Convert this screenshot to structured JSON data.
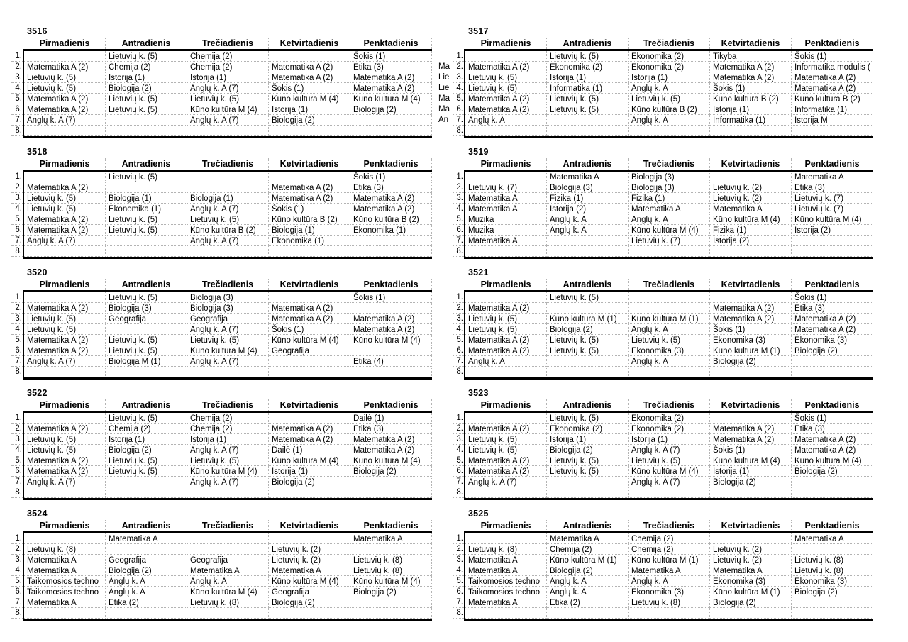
{
  "page": {
    "background_color": "#ffffff",
    "text_color": "#000000",
    "rule_color": "#000000",
    "dotted_grid_color": "#b3b3b3"
  },
  "days": [
    "Pirmadienis",
    "Antradienis",
    "Trečiadienis",
    "Ketvirtadienis",
    "Penktadienis"
  ],
  "row_numbers": [
    "1.",
    "2.",
    "3.",
    "4.",
    "5.",
    "6.",
    "7.",
    "8."
  ],
  "tables": [
    {
      "id": "3516",
      "rows": [
        [
          "",
          "Lietuvių k. (5)",
          "Chemija (2)",
          "",
          "Šokis (1)"
        ],
        [
          "Matematika A (2)",
          "Chemija (2)",
          "Chemija (2)",
          "Matematika A (2)",
          "Etika (3)"
        ],
        [
          "Lietuvių k. (5)",
          "Istorija (1)",
          "Istorija (1)",
          "Matematika A (2)",
          "Matematika A (2)"
        ],
        [
          "Lietuvių k. (5)",
          "Biologija (2)",
          "Anglų k. A (7)",
          "Šokis (1)",
          "Matematika A (2)"
        ],
        [
          "Matematika A (2)",
          "Lietuvių k. (5)",
          "Lietuvių k. (5)",
          "Kūno kultūra M (4)",
          "Kūno kultūra M (4)"
        ],
        [
          "Matematika A (2)",
          "Lietuvių k. (5)",
          "Kūno kultūra M (4)",
          "Istorija (1)",
          "Biologija (2)"
        ],
        [
          "Anglų k. A (7)",
          "",
          "Anglų k. A (7)",
          "Biologija (2)",
          ""
        ],
        [
          "",
          "",
          "",
          "",
          ""
        ]
      ]
    },
    {
      "id": "3517",
      "spill_left": [
        "",
        "Ma",
        "Lie",
        "Lie",
        "Ma",
        "Ma",
        "An",
        ""
      ],
      "rows": [
        [
          "",
          "Lietuvių k. (5)",
          "Ekonomika (2)",
          "Tikyba",
          "Šokis (1)"
        ],
        [
          "Matematika A (2)",
          "Ekonomika (2)",
          "Ekonomika (2)",
          "Matematika A (2)",
          "Informatika modulis ("
        ],
        [
          "Lietuvių k. (5)",
          "Istorija (1)",
          "Istorija (1)",
          "Matematika A (2)",
          "Matematika A (2)"
        ],
        [
          "Lietuvių k. (5)",
          "Informatika (1)",
          "Anglų k. A",
          "Šokis (1)",
          "Matematika A (2)"
        ],
        [
          "Matematika A (2)",
          "Lietuvių k. (5)",
          "Lietuvių k. (5)",
          "Kūno kultūra B (2)",
          "Kūno kultūra B (2)"
        ],
        [
          "Matematika A (2)",
          "Lietuvių k. (5)",
          "Kūno kultūra B (2)",
          "Istorija (1)",
          "Informatika (1)"
        ],
        [
          "Anglų k. A",
          "",
          "Anglų k. A",
          "Informatika (1)",
          "Istorija M"
        ],
        [
          "",
          "",
          "",
          "",
          ""
        ]
      ]
    },
    {
      "id": "3518",
      "rows": [
        [
          "",
          "Lietuvių k. (5)",
          "",
          "",
          "Šokis (1)"
        ],
        [
          "Matematika A (2)",
          "",
          "",
          "Matematika A (2)",
          "Etika (3)"
        ],
        [
          "Lietuvių k. (5)",
          "Biologija (1)",
          "Biologija (1)",
          "Matematika A (2)",
          "Matematika A (2)"
        ],
        [
          "Lietuvių k. (5)",
          "Ekonomika (1)",
          "Anglų k. A (7)",
          "Šokis (1)",
          "Matematika A (2)"
        ],
        [
          "Matematika A (2)",
          "Lietuvių k. (5)",
          "Lietuvių k. (5)",
          "Kūno kultūra B (2)",
          "Kūno kultūra B (2)"
        ],
        [
          "Matematika A (2)",
          "Lietuvių k. (5)",
          "Kūno kultūra B (2)",
          "Biologija (1)",
          "Ekonomika (1)"
        ],
        [
          "Anglų k. A (7)",
          "",
          "Anglų k. A (7)",
          "Ekonomika (1)",
          ""
        ],
        [
          "",
          "",
          "",
          "",
          ""
        ]
      ]
    },
    {
      "id": "3519",
      "rows": [
        [
          "",
          "Matematika A",
          "Biologija (3)",
          "",
          "Matematika A"
        ],
        [
          "Lietuvių k. (7)",
          "Biologija (3)",
          "Biologija (3)",
          "Lietuvių k. (2)",
          "Etika (3)"
        ],
        [
          "Matematika A",
          "Fizika (1)",
          "Fizika (1)",
          "Lietuvių k. (2)",
          "Lietuvių k. (7)"
        ],
        [
          "Matematika A",
          "Istorija (2)",
          "Matematika A",
          "Matematika A",
          "Lietuvių k. (7)"
        ],
        [
          "Muzika",
          "Anglų k. A",
          "Anglų k. A",
          "Kūno kultūra M (4)",
          "Kūno kultūra M (4)"
        ],
        [
          "Muzika",
          "Anglų k. A",
          "Kūno kultūra M (4)",
          "Fizika (1)",
          "Istorija (2)"
        ],
        [
          "Matematika A",
          "",
          "Lietuvių k. (7)",
          "Istorija (2)",
          ""
        ],
        [
          "",
          "",
          "",
          "",
          ""
        ]
      ]
    },
    {
      "id": "3520",
      "rows": [
        [
          "",
          "Lietuvių k. (5)",
          "Biologija (3)",
          "",
          "Šokis (1)"
        ],
        [
          "Matematika A (2)",
          "Biologija (3)",
          "Biologija (3)",
          "Matematika A (2)",
          ""
        ],
        [
          "Lietuvių k. (5)",
          "Geografija",
          "Geografija",
          "Matematika A (2)",
          "Matematika A (2)"
        ],
        [
          "Lietuvių k. (5)",
          "",
          "Anglų k. A (7)",
          "Šokis (1)",
          "Matematika A (2)"
        ],
        [
          "Matematika A (2)",
          "Lietuvių k. (5)",
          "Lietuvių k. (5)",
          "Kūno kultūra M (4)",
          "Kūno kultūra M (4)"
        ],
        [
          "Matematika A (2)",
          "Lietuvių k. (5)",
          "Kūno kultūra M (4)",
          "Geografija",
          ""
        ],
        [
          "Anglų k. A (7)",
          "Biologija M (1)",
          "Anglų k. A (7)",
          "",
          "Etika (4)"
        ],
        [
          "",
          "",
          "",
          "",
          ""
        ]
      ]
    },
    {
      "id": "3521",
      "rows": [
        [
          "",
          "Lietuvių k. (5)",
          "",
          "",
          "Šokis (1)"
        ],
        [
          "Matematika A (2)",
          "",
          "",
          "Matematika A (2)",
          "Etika (3)"
        ],
        [
          "Lietuvių k. (5)",
          "Kūno kultūra M (1)",
          "Kūno kultūra M (1)",
          "Matematika A (2)",
          "Matematika A (2)"
        ],
        [
          "Lietuvių k. (5)",
          "Biologija (2)",
          "Anglų k. A",
          "Šokis (1)",
          "Matematika A (2)"
        ],
        [
          "Matematika A (2)",
          "Lietuvių k. (5)",
          "Lietuvių k. (5)",
          "Ekonomika (3)",
          "Ekonomika (3)"
        ],
        [
          "Matematika A (2)",
          "Lietuvių k. (5)",
          "Ekonomika (3)",
          "Kūno kultūra M (1)",
          "Biologija (2)"
        ],
        [
          "Anglų k. A",
          "",
          "Anglų k. A",
          "Biologija (2)",
          ""
        ],
        [
          "",
          "",
          "",
          "",
          ""
        ]
      ]
    },
    {
      "id": "3522",
      "rows": [
        [
          "",
          "Lietuvių k. (5)",
          "Chemija (2)",
          "",
          "Dailė (1)"
        ],
        [
          "Matematika A (2)",
          "Chemija (2)",
          "Chemija (2)",
          "Matematika A (2)",
          "Etika (3)"
        ],
        [
          "Lietuvių k. (5)",
          "Istorija (1)",
          "Istorija (1)",
          "Matematika A (2)",
          "Matematika A (2)"
        ],
        [
          "Lietuvių k. (5)",
          "Biologija (2)",
          "Anglų k. A (7)",
          "Dailė (1)",
          "Matematika A (2)"
        ],
        [
          "Matematika A (2)",
          "Lietuvių k. (5)",
          "Lietuvių k. (5)",
          "Kūno kultūra M (4)",
          "Kūno kultūra M (4)"
        ],
        [
          "Matematika A (2)",
          "Lietuvių k. (5)",
          "Kūno kultūra M (4)",
          "Istorija (1)",
          "Biologija (2)"
        ],
        [
          "Anglų k. A (7)",
          "",
          "Anglų k. A (7)",
          "Biologija (2)",
          ""
        ],
        [
          "",
          "",
          "",
          "",
          ""
        ]
      ]
    },
    {
      "id": "3523",
      "rows": [
        [
          "",
          "Lietuvių k. (5)",
          "Ekonomika (2)",
          "",
          "Šokis (1)"
        ],
        [
          "Matematika A (2)",
          "Ekonomika (2)",
          "Ekonomika (2)",
          "Matematika A (2)",
          "Etika (3)"
        ],
        [
          "Lietuvių k. (5)",
          "Istorija (1)",
          "Istorija (1)",
          "Matematika A (2)",
          "Matematika A (2)"
        ],
        [
          "Lietuvių k. (5)",
          "Biologija (2)",
          "Anglų k. A (7)",
          "Šokis (1)",
          "Matematika A (2)"
        ],
        [
          "Matematika A (2)",
          "Lietuvių k. (5)",
          "Lietuvių k. (5)",
          "Kūno kultūra M (4)",
          "Kūno kultūra M (4)"
        ],
        [
          "Matematika A (2)",
          "Lietuvių k. (5)",
          "Kūno kultūra M (4)",
          "Istorija (1)",
          "Biologija (2)"
        ],
        [
          "Anglų k. A (7)",
          "",
          "Anglų k. A (7)",
          "Biologija (2)",
          ""
        ],
        [
          "",
          "",
          "",
          "",
          ""
        ]
      ]
    },
    {
      "id": "3524",
      "rows": [
        [
          "",
          "Matematika A",
          "",
          "",
          "Matematika A"
        ],
        [
          "Lietuvių k. (8)",
          "",
          "",
          "Lietuvių k. (2)",
          ""
        ],
        [
          "Matematika A",
          "Geografija",
          "Geografija",
          "Lietuvių k. (2)",
          "Lietuvių k. (8)"
        ],
        [
          "Matematika A",
          "Biologija (2)",
          "Matematika A",
          "Matematika A",
          "Lietuvių k. (8)"
        ],
        [
          "Taikomosios techno",
          "Anglų k. A",
          "Anglų k. A",
          "Kūno kultūra M (4)",
          "Kūno kultūra M (4)"
        ],
        [
          "Taikomosios techno",
          "Anglų k. A",
          "Kūno kultūra M (4)",
          "Geografija",
          "Biologija (2)"
        ],
        [
          "Matematika A",
          "Etika (2)",
          "Lietuvių k. (8)",
          "Biologija (2)",
          ""
        ],
        [
          "",
          "",
          "",
          "",
          ""
        ]
      ]
    },
    {
      "id": "3525",
      "rows": [
        [
          "",
          "Matematika A",
          "Chemija (2)",
          "",
          "Matematika A"
        ],
        [
          "Lietuvių k. (8)",
          "Chemija (2)",
          "Chemija (2)",
          "Lietuvių k. (2)",
          ""
        ],
        [
          "Matematika A",
          "Kūno kultūra M (1)",
          "Kūno kultūra M (1)",
          "Lietuvių k. (2)",
          "Lietuvių k. (8)"
        ],
        [
          "Matematika A",
          "Biologija (2)",
          "Matematika A",
          "Matematika A",
          "Lietuvių k. (8)"
        ],
        [
          "Taikomosios techno",
          "Anglų k. A",
          "Anglų k. A",
          "Ekonomika (3)",
          "Ekonomika (3)"
        ],
        [
          "Taikomosios techno",
          "Anglų k. A",
          "Ekonomika (3)",
          "Kūno kultūra M (1)",
          "Biologija (2)"
        ],
        [
          "Matematika A",
          "Etika (2)",
          "Lietuvių k. (8)",
          "Biologija (2)",
          ""
        ],
        [
          "",
          "",
          "",
          "",
          ""
        ]
      ]
    }
  ]
}
